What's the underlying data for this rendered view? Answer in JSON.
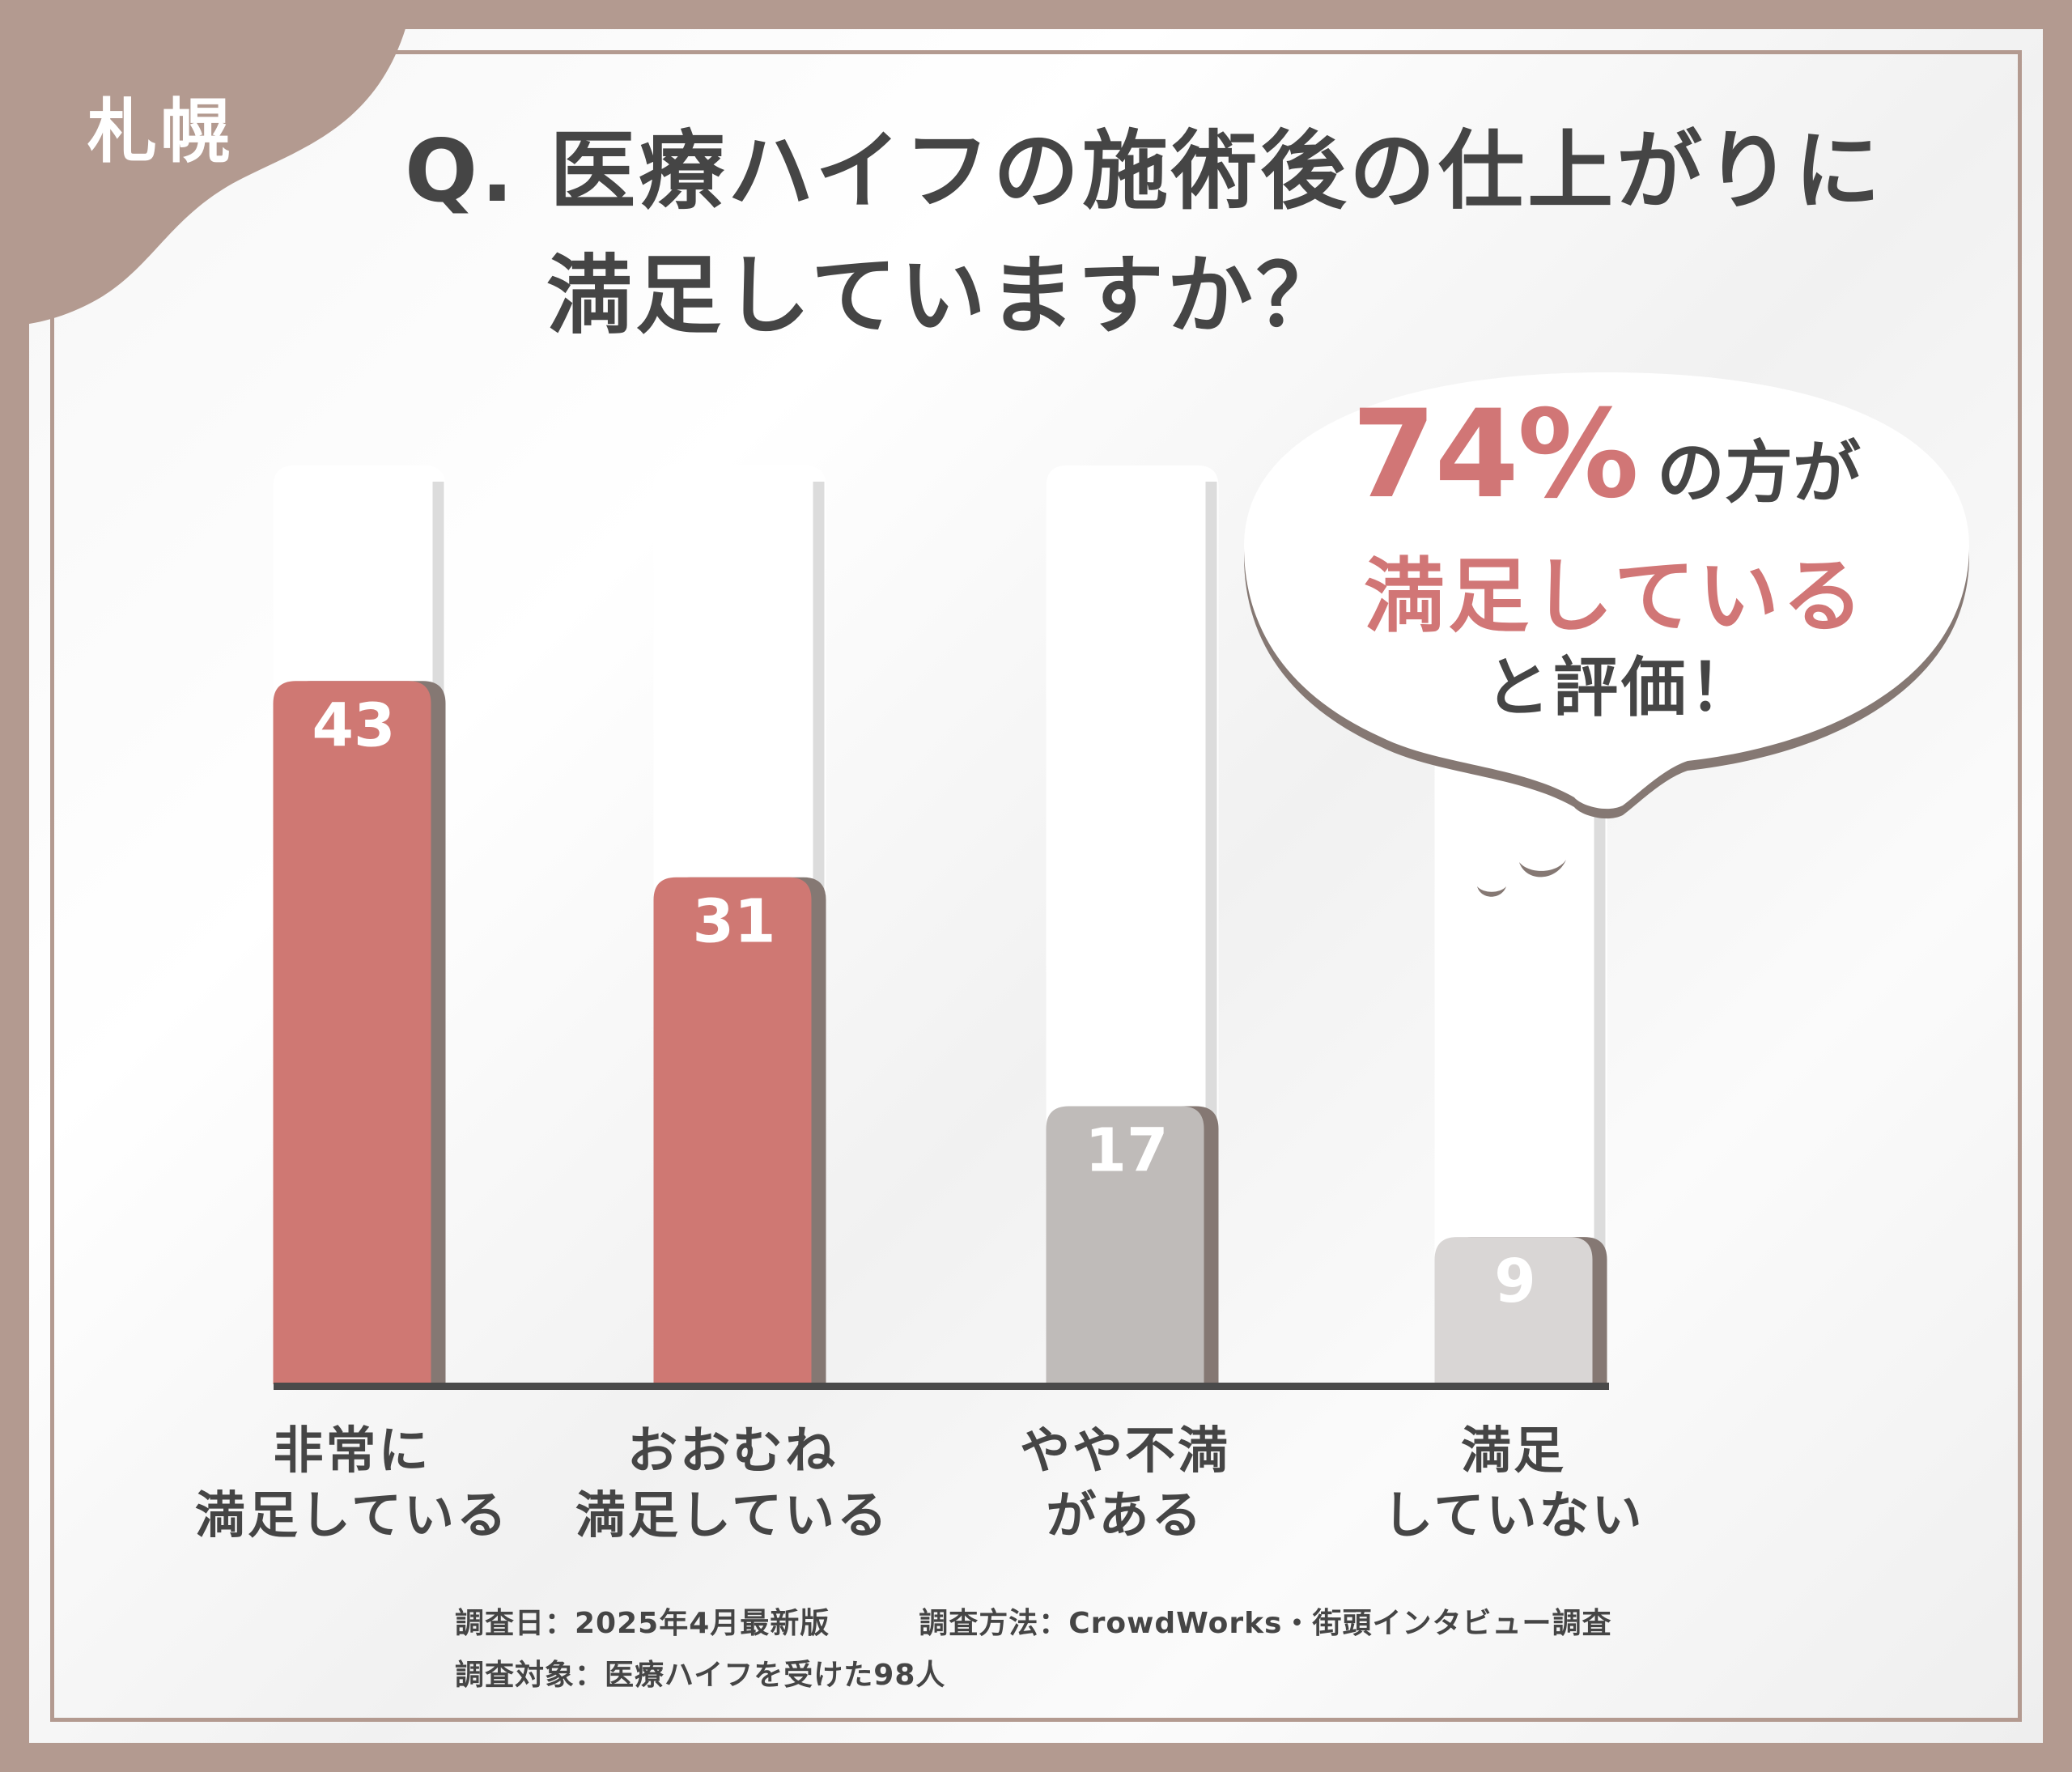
{
  "badge": {
    "city": "札幌"
  },
  "question": {
    "line1": "Q. 医療ハイフの施術後の仕上がりに",
    "line2": "満足していますか？"
  },
  "callout": {
    "percent": "74%",
    "suffix": "の方が",
    "highlight": "満足している",
    "tail": "と評価！"
  },
  "chart_data": {
    "type": "bar",
    "categories": [
      "非常に\n満足している",
      "おおむね\n満足している",
      "やや不満\nがある",
      "満足\nしていない"
    ],
    "values": [
      43,
      31,
      17,
      9
    ],
    "ylim": [
      0,
      100
    ],
    "bar_colors": [
      "#cf7873",
      "#cf7873",
      "#bfbbb9",
      "#d9d6d5"
    ],
    "shadow_color": "#857873",
    "title": "",
    "xlabel": "",
    "ylabel": ""
  },
  "footer": {
    "date": "調査日：2025年4月最新版",
    "method": "調査方法：CrowdWorks・街頭インタビュー調査",
    "target": "調査対象：医療ハイフを受けた98人"
  },
  "colors": {
    "frame": "#b39a90",
    "accent": "#d17676",
    "text": "#454545"
  }
}
